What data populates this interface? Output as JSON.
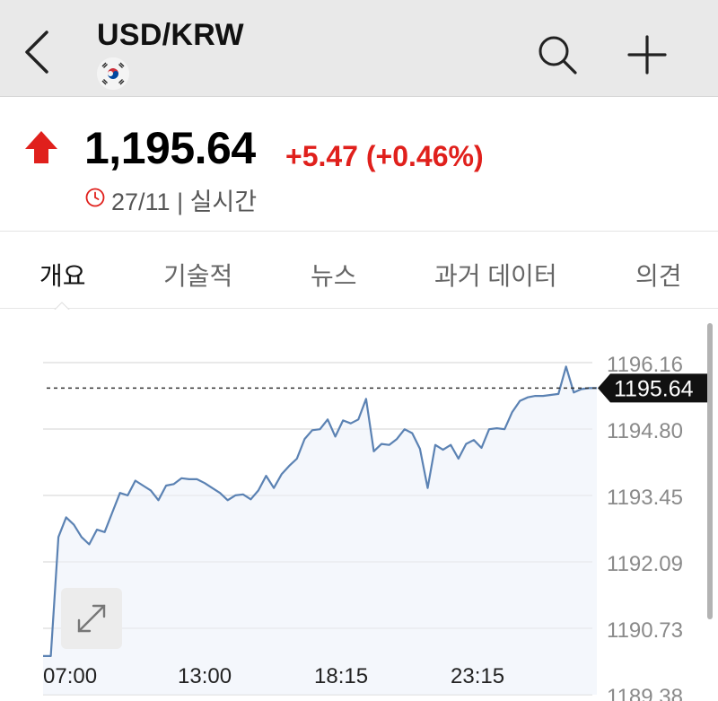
{
  "header": {
    "title": "USD/KRW",
    "back_icon": "chevron-left-icon",
    "search_icon": "search-icon",
    "add_icon": "plus-icon"
  },
  "quote": {
    "price": "1,195.64",
    "change": "+5.47 (+0.46%)",
    "time_info": "27/11 | 실시간",
    "direction": "up",
    "up_color": "#e0201c"
  },
  "tabs": [
    {
      "label": "개요",
      "active": true
    },
    {
      "label": "기술적",
      "active": false
    },
    {
      "label": "뉴스",
      "active": false
    },
    {
      "label": "과거 데이터",
      "active": false
    },
    {
      "label": "의견",
      "active": false
    }
  ],
  "chart_data": {
    "type": "area",
    "line_color": "#5b82b3",
    "fill_color": "#f4f7fc",
    "current_value": 1195.64,
    "current_label": "1195.64",
    "y_ticks": [
      "1196.16",
      "1194.80",
      "1193.45",
      "1192.09",
      "1190.73",
      "1189.38"
    ],
    "x_ticks": [
      "07:00",
      "13:00",
      "18:15",
      "23:15"
    ],
    "y_range": [
      1189.38,
      1196.16
    ],
    "grid": true,
    "series": [
      {
        "values": [
          1190.17,
          1190.17,
          1192.6,
          1193.0,
          1192.85,
          1192.6,
          1192.45,
          1192.75,
          1192.7,
          1193.1,
          1193.5,
          1193.45,
          1193.75,
          1193.65,
          1193.55,
          1193.35,
          1193.65,
          1193.68,
          1193.8,
          1193.78,
          1193.78,
          1193.7,
          1193.6,
          1193.5,
          1193.35,
          1193.45,
          1193.47,
          1193.37,
          1193.55,
          1193.85,
          1193.6,
          1193.88,
          1194.05,
          1194.2,
          1194.6,
          1194.78,
          1194.8,
          1195.0,
          1194.65,
          1194.98,
          1194.92,
          1195.0,
          1195.42,
          1194.35,
          1194.5,
          1194.48,
          1194.6,
          1194.8,
          1194.72,
          1194.4,
          1193.6,
          1194.48,
          1194.38,
          1194.48,
          1194.2,
          1194.5,
          1194.58,
          1194.42,
          1194.8,
          1194.82,
          1194.8,
          1195.15,
          1195.38,
          1195.45,
          1195.48,
          1195.48,
          1195.5,
          1195.52,
          1196.08,
          1195.55,
          1195.62,
          1195.64,
          1195.64
        ]
      }
    ]
  }
}
